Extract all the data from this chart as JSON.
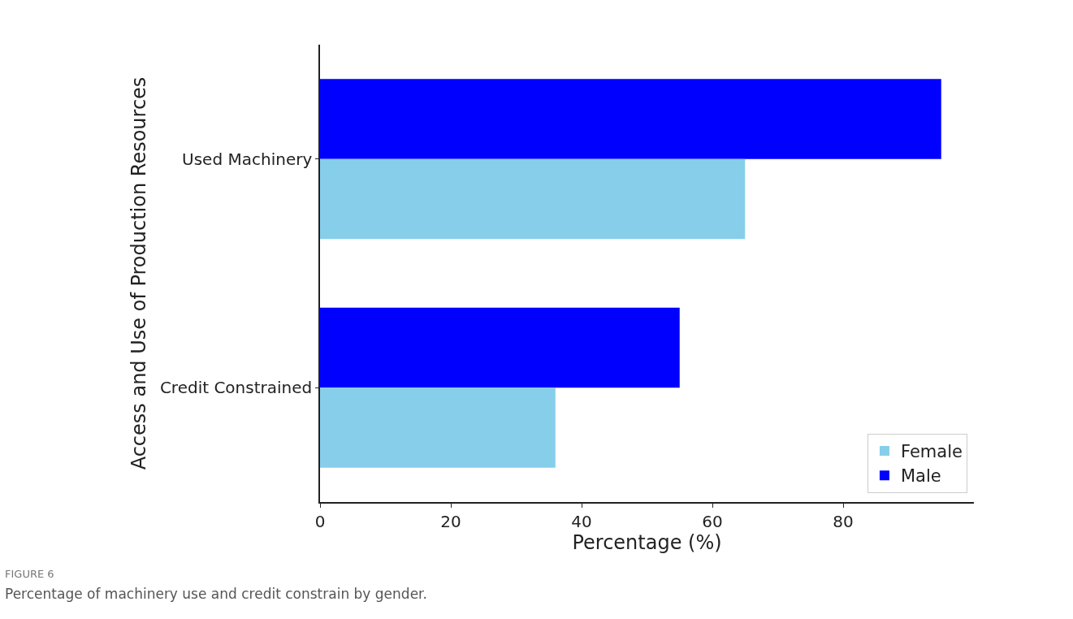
{
  "chart_data": {
    "type": "bar",
    "orientation": "horizontal",
    "xlabel": "Percentage (%)",
    "ylabel": "Access and Use of Production Resources",
    "categories": [
      "Used Machinery",
      "Credit Constrained"
    ],
    "series": [
      {
        "name": "Female",
        "color": "#87ceeb",
        "values": [
          65,
          36
        ]
      },
      {
        "name": "Male",
        "color": "#0000ff",
        "values": [
          95,
          55
        ]
      }
    ],
    "xlim": [
      0,
      100
    ],
    "xticks": [
      0,
      20,
      40,
      60,
      80
    ],
    "legend": "bottom right",
    "annotations": [
      "FIGURE 6",
      "Percentage of machinery use and credit constrain by gender."
    ]
  }
}
